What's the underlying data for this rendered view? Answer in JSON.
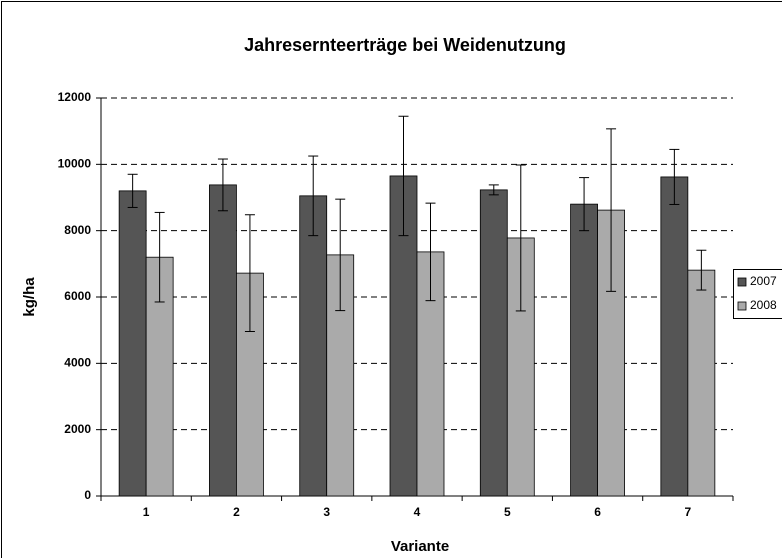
{
  "chart_data": {
    "type": "bar",
    "title": "Jahresernteerträge bei Weidenutzung",
    "x_label": "Variante",
    "y_label": "kg/ha",
    "categories": [
      "1",
      "2",
      "3",
      "4",
      "5",
      "6",
      "7"
    ],
    "series": [
      {
        "name": "2007",
        "color": "#555555",
        "values": [
          9200,
          9380,
          9050,
          9650,
          9230,
          8800,
          9620
        ],
        "errors": [
          500,
          780,
          1200,
          1800,
          150,
          800,
          830
        ]
      },
      {
        "name": "2008",
        "color": "#aaaaaa",
        "values": [
          7200,
          6720,
          7270,
          7360,
          7780,
          8620,
          6810
        ],
        "errors": [
          1350,
          1760,
          1680,
          1470,
          2200,
          2450,
          600
        ]
      }
    ],
    "ylim": [
      0,
      12000
    ],
    "yticks": [
      0,
      2000,
      4000,
      6000,
      8000,
      10000,
      12000
    ],
    "grid": true,
    "legend": "right"
  }
}
